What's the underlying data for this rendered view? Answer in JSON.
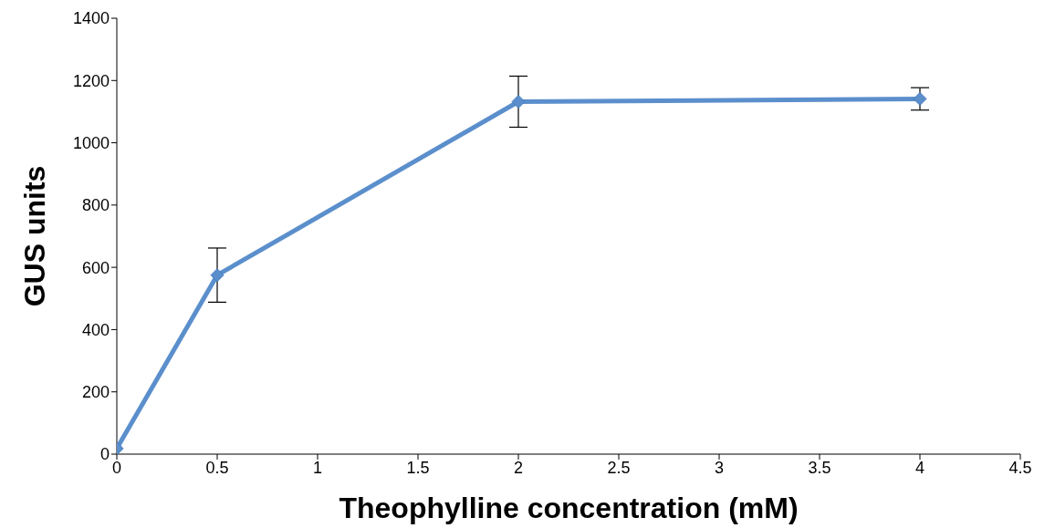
{
  "chart_data": {
    "type": "line",
    "xlabel": "Theophylline concentration (mM)",
    "ylabel": "GUS units",
    "x": [
      0,
      0.5,
      2,
      4
    ],
    "series": [
      {
        "color": "#5b8fcc",
        "values": [
          18,
          575,
          1132,
          1141
        ],
        "errors": [
          null,
          87,
          82,
          36
        ]
      }
    ],
    "xlim": [
      0,
      4.5
    ],
    "xticks": [
      0,
      0.5,
      1,
      1.5,
      2,
      2.5,
      3,
      3.5,
      4,
      4.5
    ],
    "ylim": [
      0,
      1400
    ],
    "yticks": [
      0,
      200,
      400,
      600,
      800,
      1000,
      1200,
      1400
    ],
    "grid": false,
    "marker": "diamond",
    "line_style": "solid"
  }
}
